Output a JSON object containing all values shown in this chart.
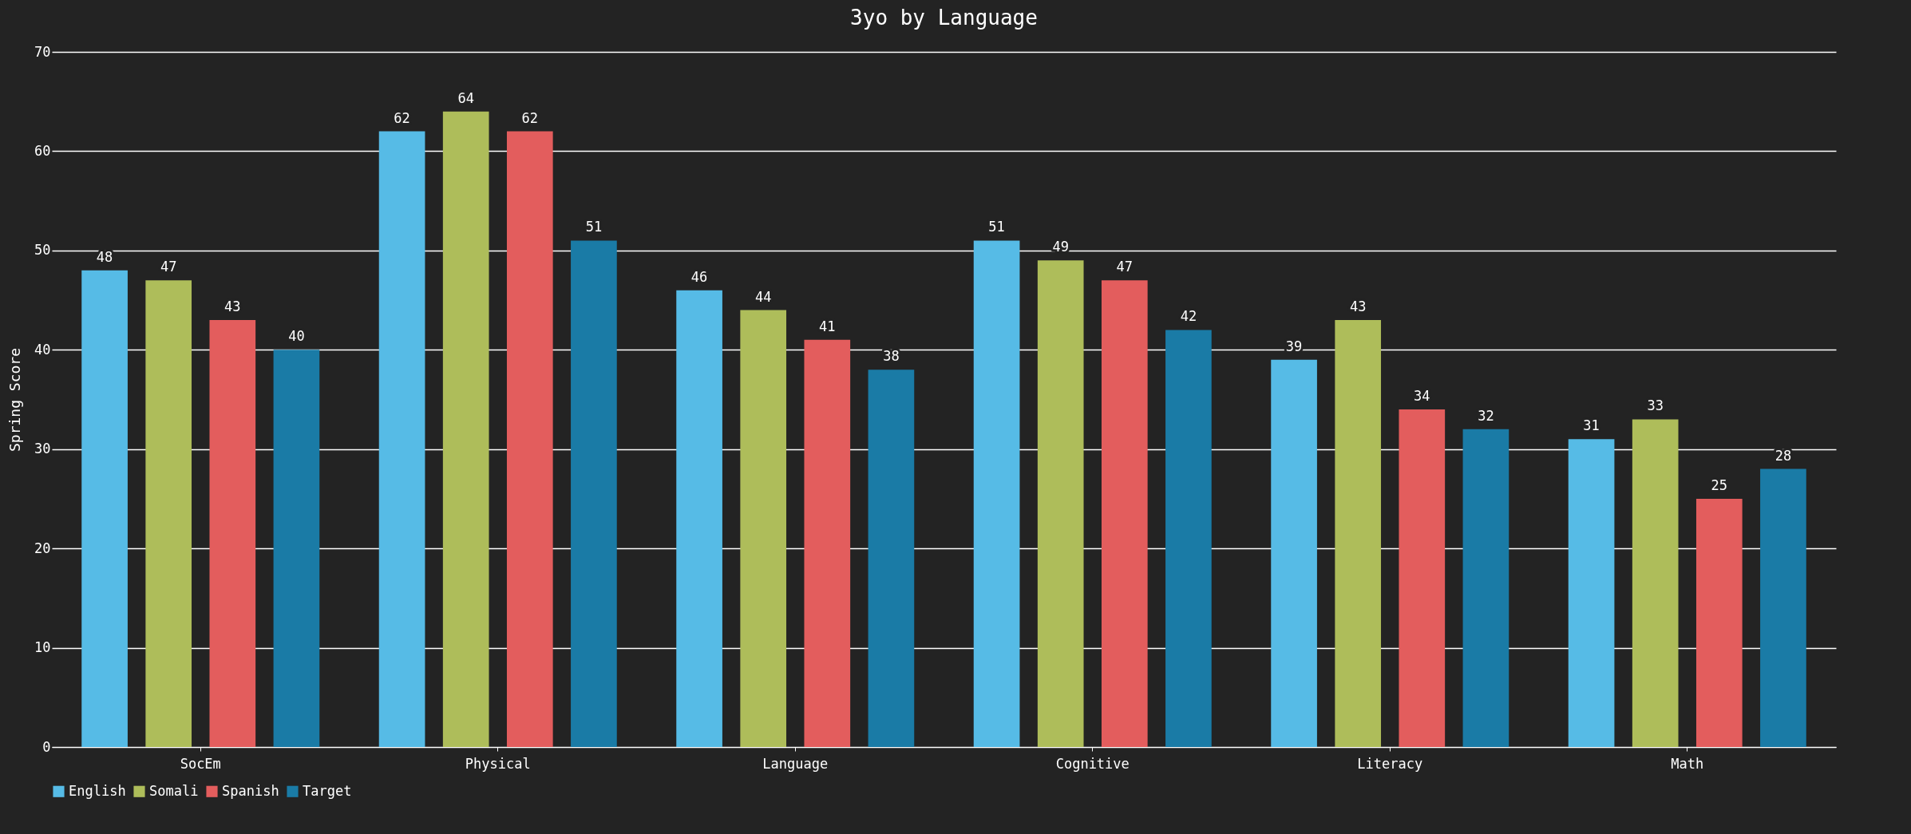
{
  "chart_data": {
    "type": "bar",
    "title": "3yo by Language",
    "ylabel": "Spring Score",
    "categories": [
      "SocEm",
      "Physical",
      "Language",
      "Cognitive",
      "Literacy",
      "Math"
    ],
    "series": [
      {
        "name": "English",
        "color": "#56bbe6",
        "values": [
          48,
          62,
          46,
          51,
          39,
          31
        ]
      },
      {
        "name": "Somali",
        "color": "#aebd5a",
        "values": [
          47,
          64,
          44,
          49,
          43,
          33
        ]
      },
      {
        "name": "Spanish",
        "color": "#e35d5d",
        "values": [
          43,
          62,
          41,
          47,
          34,
          25
        ]
      },
      {
        "name": "Target",
        "color": "#1a7ba6",
        "values": [
          40,
          51,
          38,
          42,
          32,
          28
        ]
      }
    ],
    "ylim": [
      0,
      70
    ],
    "yticks": [
      0,
      10,
      20,
      30,
      40,
      50,
      60,
      70
    ],
    "grid": "y",
    "legend": "bottom",
    "data_labels": true
  }
}
